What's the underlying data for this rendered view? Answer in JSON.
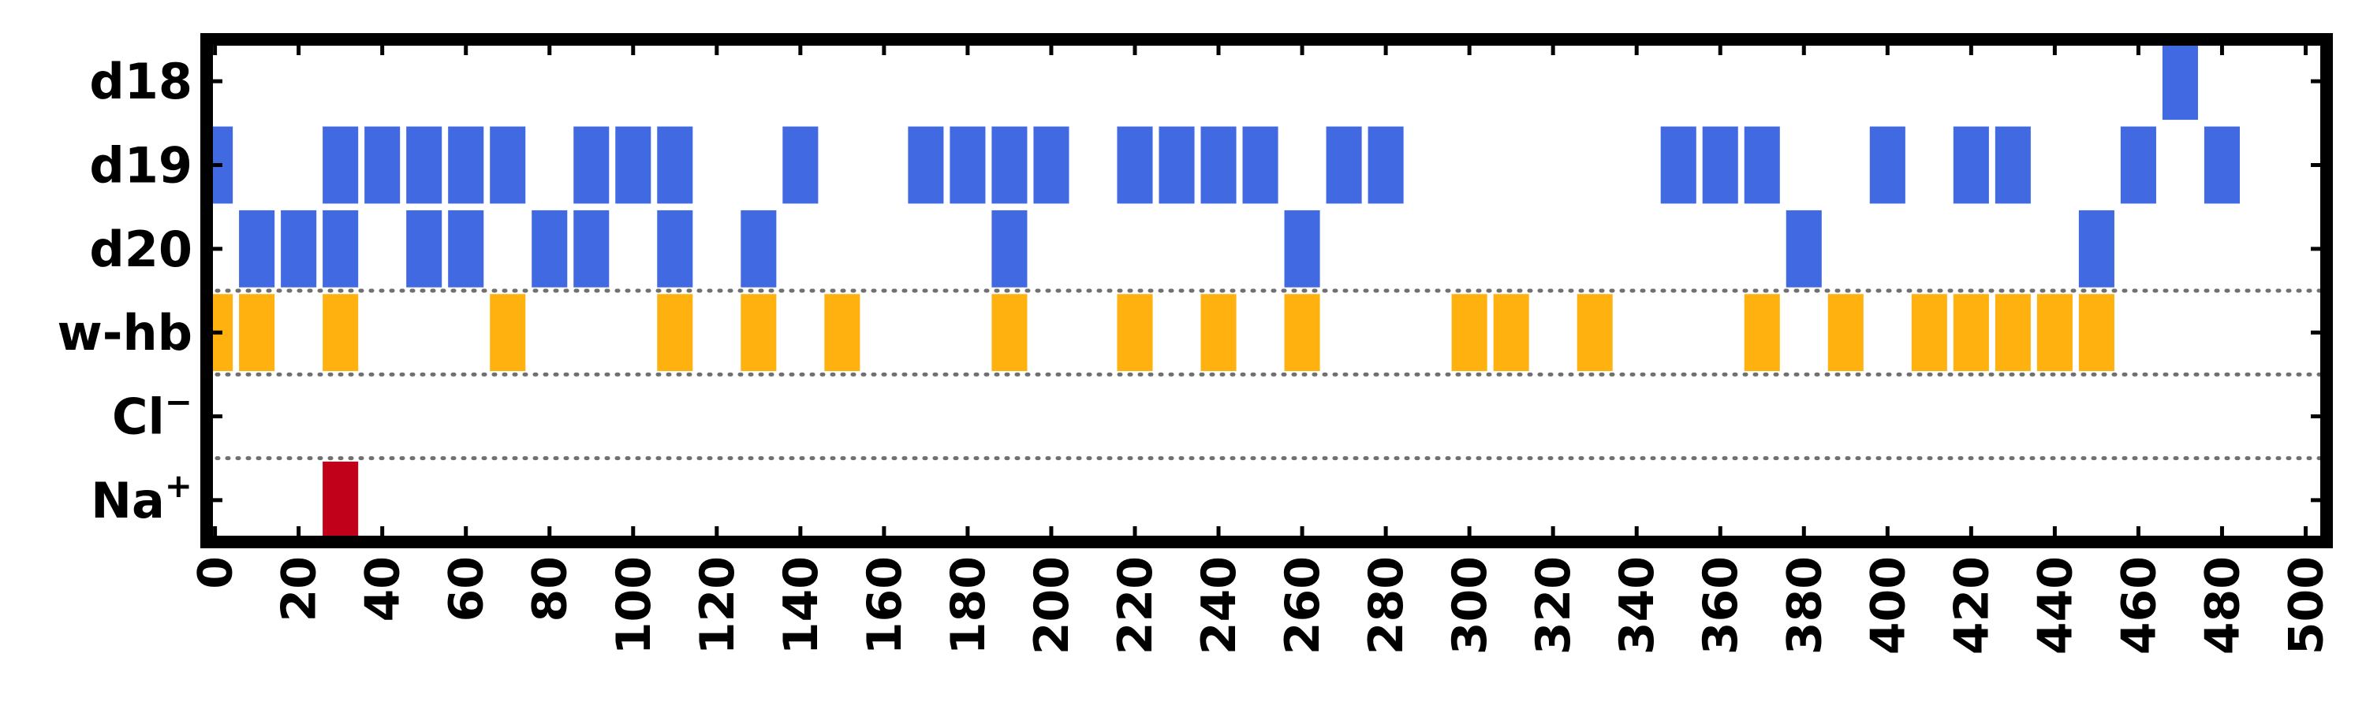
{
  "chart_data": {
    "type": "event-raster",
    "title": "",
    "xlabel": "",
    "ylabel": "",
    "xlim": [
      -2,
      505
    ],
    "x_ticks": [
      0,
      20,
      40,
      60,
      80,
      100,
      120,
      140,
      160,
      180,
      200,
      220,
      240,
      260,
      280,
      300,
      320,
      340,
      360,
      380,
      400,
      420,
      440,
      460,
      480,
      500
    ],
    "x_tick_labels": [
      "0",
      "20",
      "40",
      "60",
      "80",
      "100",
      "120",
      "140",
      "160",
      "180",
      "200",
      "220",
      "240",
      "260",
      "280",
      "300",
      "320",
      "340",
      "360",
      "380",
      "400",
      "420",
      "440",
      "460",
      "480",
      "500"
    ],
    "bar_width": 8.5,
    "grid": false,
    "rows": [
      {
        "key": "d18",
        "label": "d18",
        "superscript": "",
        "color": "#4169e1",
        "events": [
          470
        ]
      },
      {
        "key": "d19",
        "label": "d19",
        "superscript": "",
        "color": "#4169e1",
        "events": [
          0,
          30,
          40,
          50,
          60,
          70,
          90,
          100,
          110,
          140,
          170,
          180,
          190,
          200,
          220,
          230,
          240,
          250,
          270,
          280,
          350,
          360,
          370,
          400,
          420,
          430,
          460,
          480
        ]
      },
      {
        "key": "d20",
        "label": "d20",
        "superscript": "",
        "color": "#4169e1",
        "events": [
          10,
          20,
          30,
          50,
          60,
          80,
          90,
          110,
          130,
          190,
          260,
          380,
          450
        ]
      },
      {
        "key": "w-hb",
        "label": "w-hb",
        "superscript": "",
        "color": "#ffb20f",
        "events": [
          0,
          10,
          30,
          70,
          110,
          130,
          150,
          190,
          220,
          240,
          260,
          300,
          310,
          330,
          370,
          390,
          410,
          420,
          430,
          440,
          450
        ]
      },
      {
        "key": "cl",
        "label": "Cl",
        "superscript": "−",
        "color": "#4169e1",
        "events": []
      },
      {
        "key": "na",
        "label": "Na",
        "superscript": "+",
        "color": "#c1001a",
        "events": [
          30
        ]
      }
    ],
    "group_separators_after_rows": [
      "d20",
      "w-hb",
      "cl"
    ],
    "colors": {
      "dna": "#4169e1",
      "water": "#ffb20f",
      "ion": "#c1001a",
      "separator": "#707070"
    }
  }
}
